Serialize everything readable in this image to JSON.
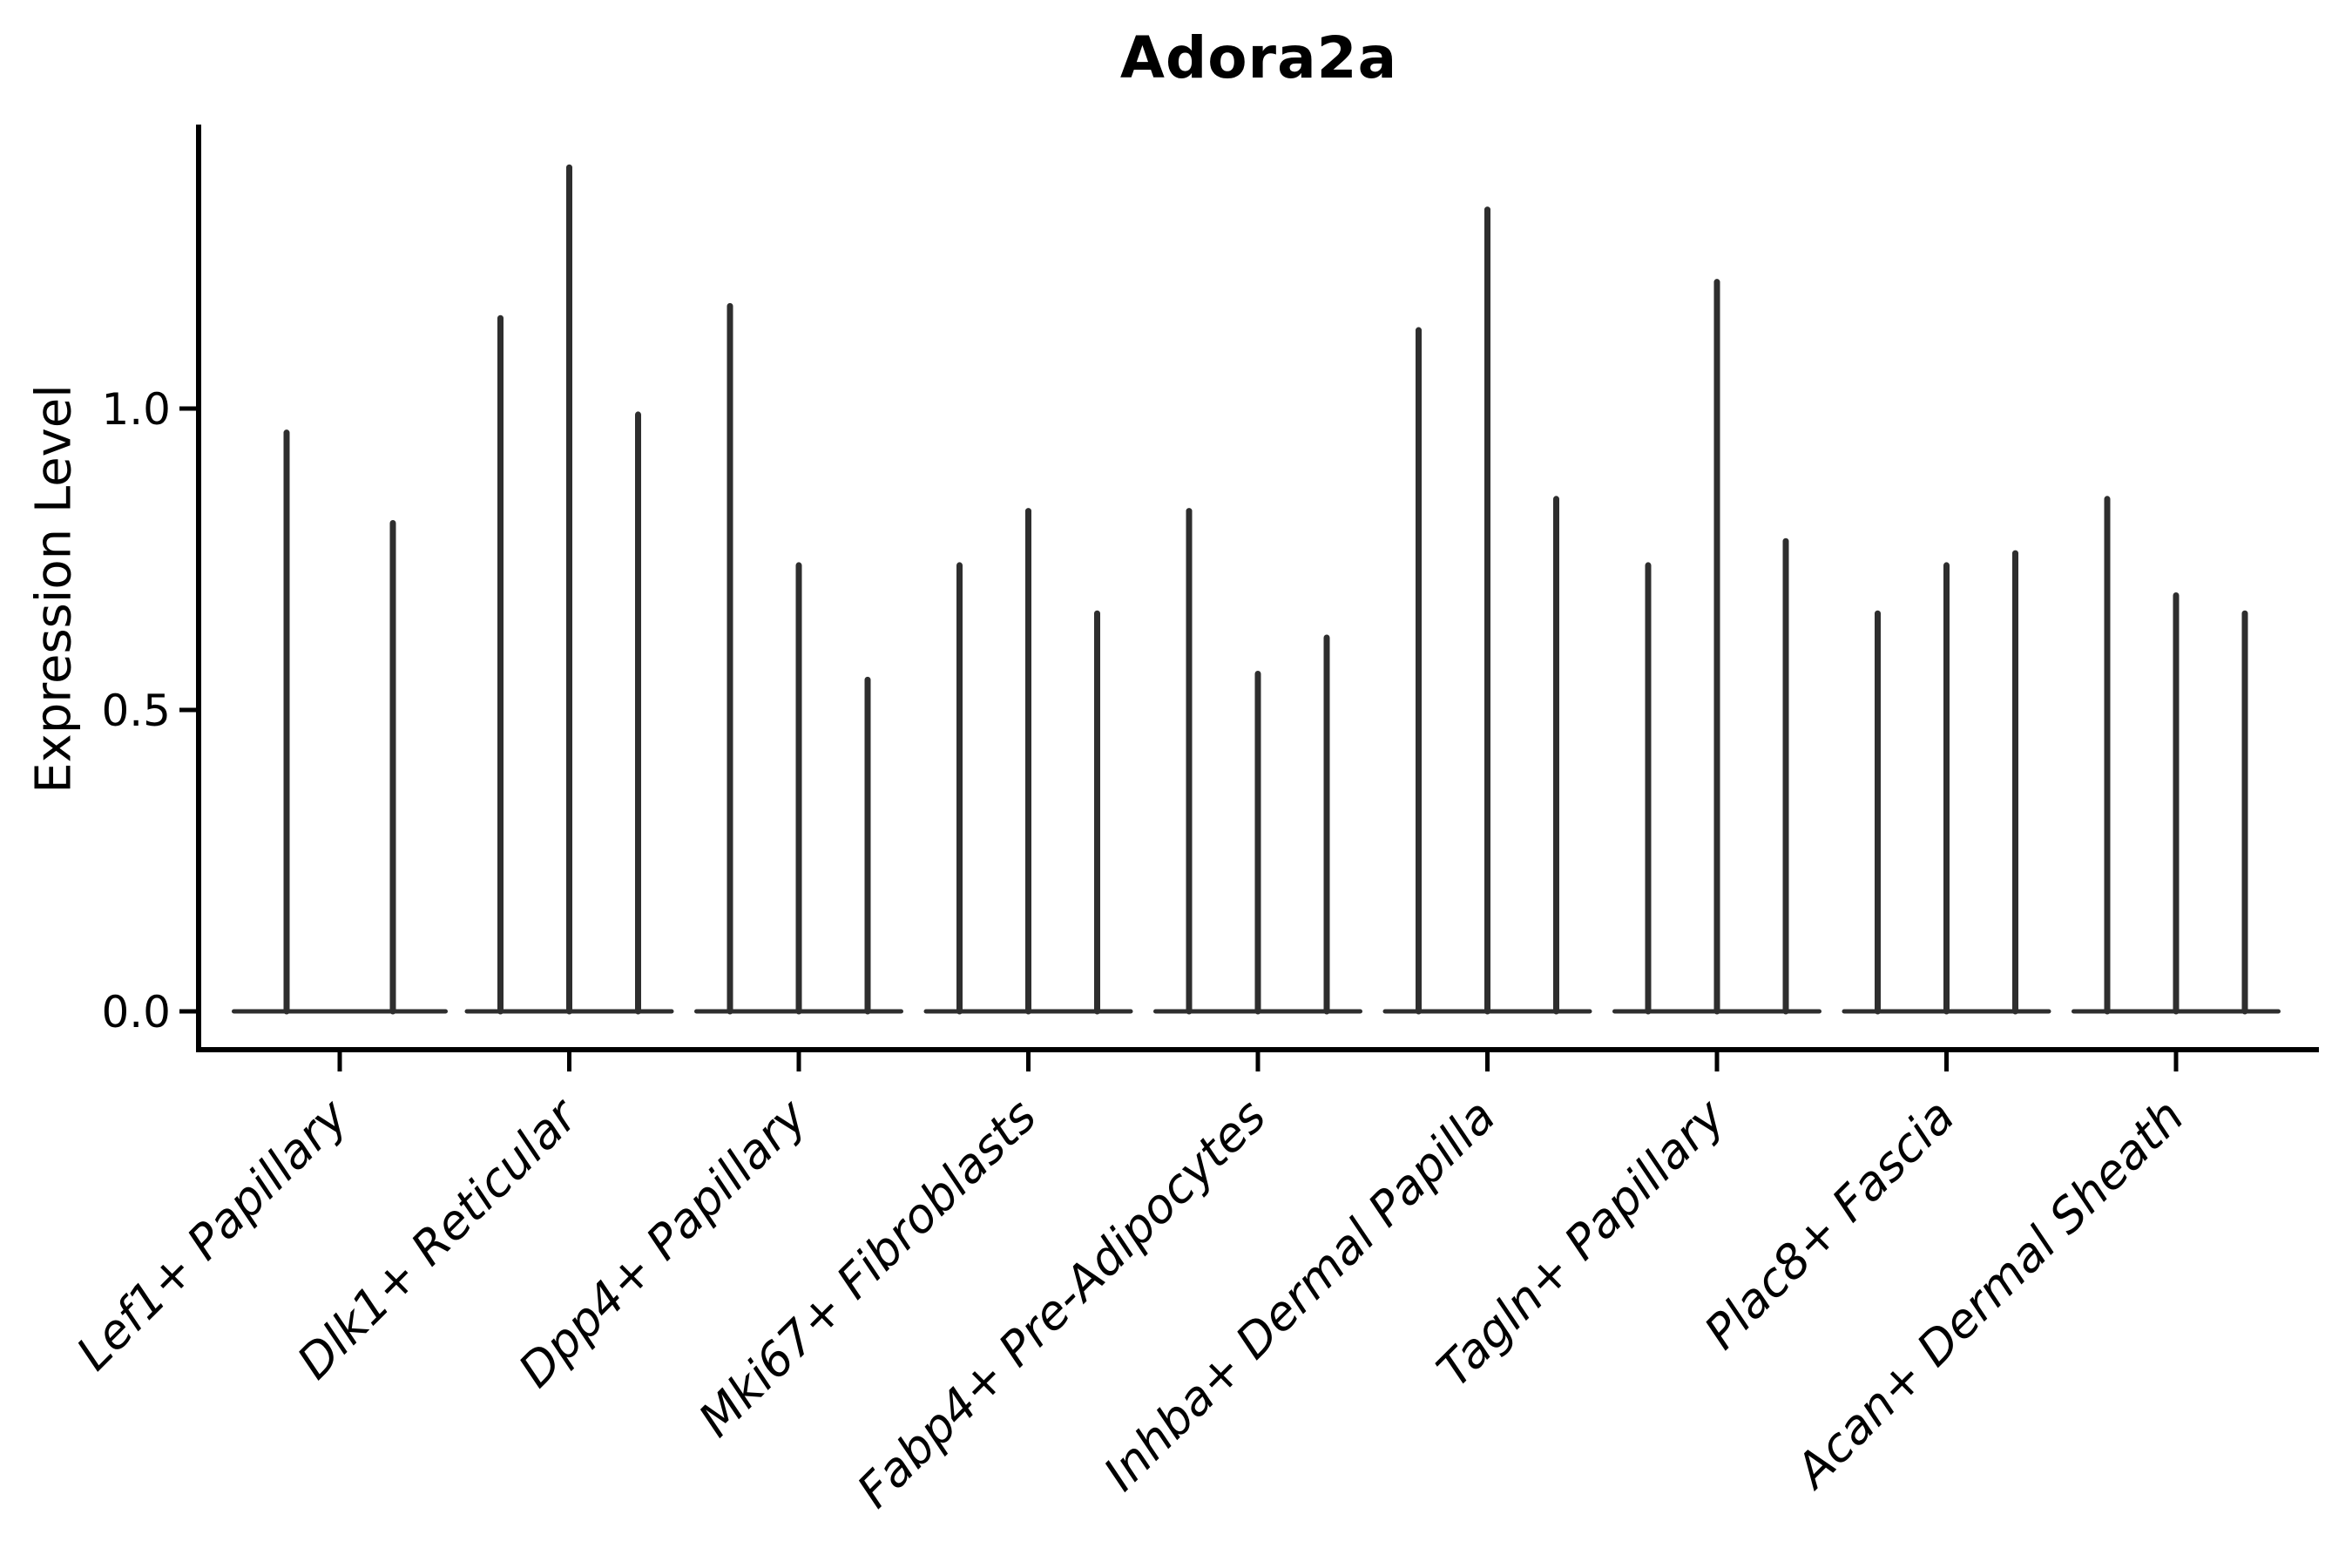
{
  "figure": {
    "title": "Adora2a",
    "y_axis_label": "Expression Level",
    "colors": {
      "violin": "#2e2e2e",
      "axis": "#000000",
      "text": "#000000",
      "background": "#ffffff"
    }
  },
  "chart_data": {
    "type": "violin",
    "title": "Adora2a",
    "xlabel": "",
    "ylabel": "Expression Level",
    "ylim": [
      0,
      1.475
    ],
    "yticks": [
      0.0,
      0.5,
      1.0
    ],
    "ytick_labels": [
      "0.0",
      "0.5",
      "1.0"
    ],
    "grid": false,
    "legend_position": "none",
    "violin_style": "collapsed-at-zero-baseline-with-thin-spike-to-max",
    "categories": [
      "Lef1+ Papillary",
      "Dlk1+ Reticular",
      "Dpp4+ Papillary",
      "Mki67+ Fibroblasts",
      "Fabp4+ Pre-Adipocytes",
      "Inhba+ Dermal Papilla",
      "Tagln+ Papillary",
      "Plac8+ Fascia",
      "Acan+ Dermal Sheath"
    ],
    "violin_max_per_category": [
      [
        0.96,
        0.81
      ],
      [
        1.15,
        1.4,
        0.99
      ],
      [
        1.17,
        0.74,
        0.55
      ],
      [
        0.74,
        0.83,
        0.66
      ],
      [
        0.83,
        0.56,
        0.62
      ],
      [
        1.13,
        1.33,
        0.85
      ],
      [
        0.74,
        1.21,
        0.78
      ],
      [
        0.66,
        0.74,
        0.76
      ],
      [
        0.85,
        0.69,
        0.66
      ]
    ]
  }
}
